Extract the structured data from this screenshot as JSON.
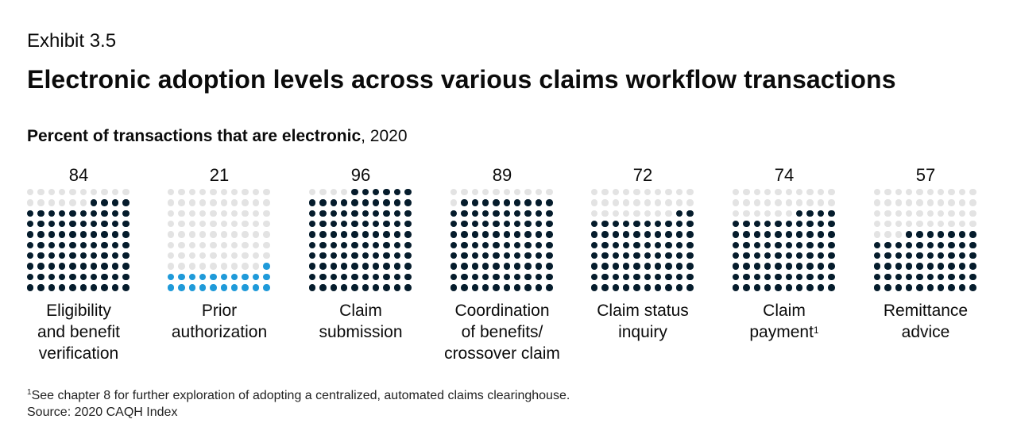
{
  "header": {
    "exhibit": "Exhibit 3.5",
    "title": "Electronic adoption levels across various claims workflow transactions",
    "subtitle_bold": "Percent of transactions that are electronic",
    "subtitle_rest": ", 2020"
  },
  "colors": {
    "filled": "#051c2c",
    "highlight": "#1f9ad9",
    "empty": "#e3e3e3"
  },
  "chart_data": {
    "type": "waffle",
    "title": "Electronic adoption levels across various claims workflow transactions",
    "unit": "Percent of transactions that are electronic, 2020",
    "grid": "10x10",
    "categories": [
      {
        "label_lines": [
          "Eligibility",
          "and benefit",
          "verification"
        ],
        "value": 84,
        "footnote_mark": "",
        "highlight": false
      },
      {
        "label_lines": [
          "Prior",
          "authorization"
        ],
        "value": 21,
        "footnote_mark": "",
        "highlight": true
      },
      {
        "label_lines": [
          "Claim",
          "submission"
        ],
        "value": 96,
        "footnote_mark": "",
        "highlight": false
      },
      {
        "label_lines": [
          "Coordination",
          "of benefits/",
          "crossover claim"
        ],
        "value": 89,
        "footnote_mark": "",
        "highlight": false
      },
      {
        "label_lines": [
          "Claim status",
          "inquiry"
        ],
        "value": 72,
        "footnote_mark": "",
        "highlight": false
      },
      {
        "label_lines": [
          "Claim",
          "payment"
        ],
        "value": 74,
        "footnote_mark": "1",
        "highlight": false
      },
      {
        "label_lines": [
          "Remittance",
          "advice"
        ],
        "value": 57,
        "footnote_mark": "",
        "highlight": false
      }
    ]
  },
  "footer": {
    "footnote_mark": "1",
    "footnote": "See chapter 8 for further exploration of adopting a centralized, automated claims clearinghouse.",
    "source": "Source: 2020 CAQH Index"
  }
}
